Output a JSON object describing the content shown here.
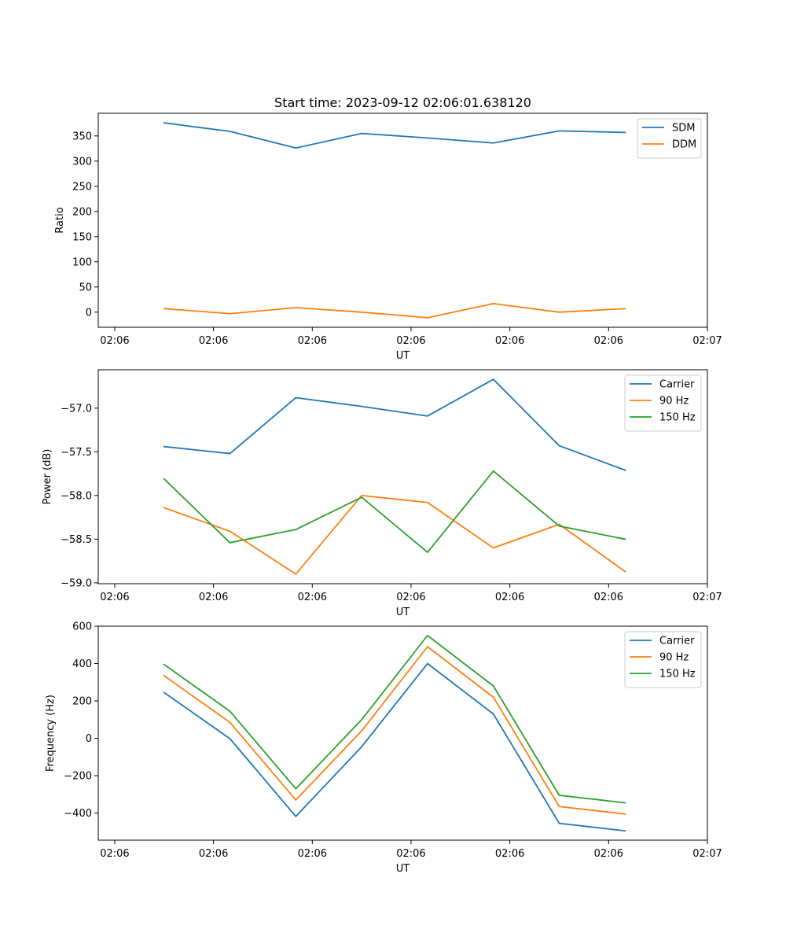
{
  "figure_title": "Start time: 2023-09-12 02:06:01.638120",
  "colors": {
    "blue": "#1f77b4",
    "orange": "#ff7f0e",
    "green": "#2ca02c"
  },
  "chart_data": [
    {
      "type": "line",
      "title": "Start time: 2023-09-12 02:06:01.638120",
      "xlabel": "UT",
      "ylabel": "Ratio",
      "x": [
        1,
        2,
        3,
        4,
        5,
        6,
        7,
        8
      ],
      "xlim": [
        0,
        9.25
      ],
      "xticks": [
        0.25,
        1.75,
        3.25,
        4.75,
        6.25,
        7.75,
        9.25
      ],
      "xtick_labels": [
        "02:06",
        "02:06",
        "02:06",
        "02:06",
        "02:06",
        "02:06",
        "02:07"
      ],
      "ylim": [
        -30,
        395
      ],
      "yticks": [
        0,
        50,
        100,
        150,
        200,
        250,
        300,
        350
      ],
      "ytick_labels": [
        "0",
        "50",
        "100",
        "150",
        "200",
        "250",
        "300",
        "350"
      ],
      "legend": "top-right",
      "series": [
        {
          "name": "SDM",
          "color": "#1f77b4",
          "values": [
            376,
            359,
            326,
            355,
            346,
            336,
            360,
            357
          ]
        },
        {
          "name": "DDM",
          "color": "#ff7f0e",
          "values": [
            7,
            -3,
            9,
            0,
            -11,
            17,
            0,
            7
          ]
        }
      ]
    },
    {
      "type": "line",
      "title": "",
      "xlabel": "UT",
      "ylabel": "Power (dB)",
      "x": [
        1,
        2,
        3,
        4,
        5,
        6,
        7,
        8
      ],
      "xlim": [
        0,
        9.25
      ],
      "xticks": [
        0.25,
        1.75,
        3.25,
        4.75,
        6.25,
        7.75,
        9.25
      ],
      "xtick_labels": [
        "02:06",
        "02:06",
        "02:06",
        "02:06",
        "02:06",
        "02:06",
        "02:07"
      ],
      "ylim": [
        -59.01,
        -56.56
      ],
      "yticks": [
        -59.0,
        -58.5,
        -58.0,
        -57.5,
        -57.0
      ],
      "ytick_labels": [
        "−59.0",
        "−58.5",
        "−58.0",
        "−57.5",
        "−57.0"
      ],
      "legend": "top-right",
      "series": [
        {
          "name": "Carrier",
          "color": "#1f77b4",
          "values": [
            -57.44,
            -57.52,
            -56.88,
            -56.98,
            -57.09,
            -56.67,
            -57.43,
            -57.71
          ]
        },
        {
          "name": "90 Hz",
          "color": "#ff7f0e",
          "values": [
            -58.14,
            -58.41,
            -58.9,
            -58.0,
            -58.08,
            -58.6,
            -58.33,
            -58.87
          ]
        },
        {
          "name": "150 Hz",
          "color": "#2ca02c",
          "values": [
            -57.81,
            -58.54,
            -58.39,
            -58.02,
            -58.65,
            -57.72,
            -58.35,
            -58.5
          ]
        }
      ]
    },
    {
      "type": "line",
      "title": "",
      "xlabel": "UT",
      "ylabel": "Frequency (Hz)",
      "x": [
        1,
        2,
        3,
        4,
        5,
        6,
        7,
        8
      ],
      "xlim": [
        0,
        9.25
      ],
      "xticks": [
        0.25,
        1.75,
        3.25,
        4.75,
        6.25,
        7.75,
        9.25
      ],
      "xtick_labels": [
        "02:06",
        "02:06",
        "02:06",
        "02:06",
        "02:06",
        "02:06",
        "02:07"
      ],
      "ylim": [
        -545,
        600
      ],
      "yticks": [
        -400,
        -200,
        0,
        200,
        400,
        600
      ],
      "ytick_labels": [
        "−400",
        "−200",
        "0",
        "200",
        "400",
        "600"
      ],
      "legend": "top-right",
      "series": [
        {
          "name": "Carrier",
          "color": "#1f77b4",
          "values": [
            245,
            -2,
            -418,
            -45,
            400,
            130,
            -455,
            -495
          ]
        },
        {
          "name": "90 Hz",
          "color": "#ff7f0e",
          "values": [
            335,
            85,
            -330,
            40,
            490,
            220,
            -365,
            -405
          ]
        },
        {
          "name": "150 Hz",
          "color": "#2ca02c",
          "values": [
            395,
            145,
            -270,
            100,
            550,
            280,
            -305,
            -345
          ]
        }
      ]
    }
  ]
}
